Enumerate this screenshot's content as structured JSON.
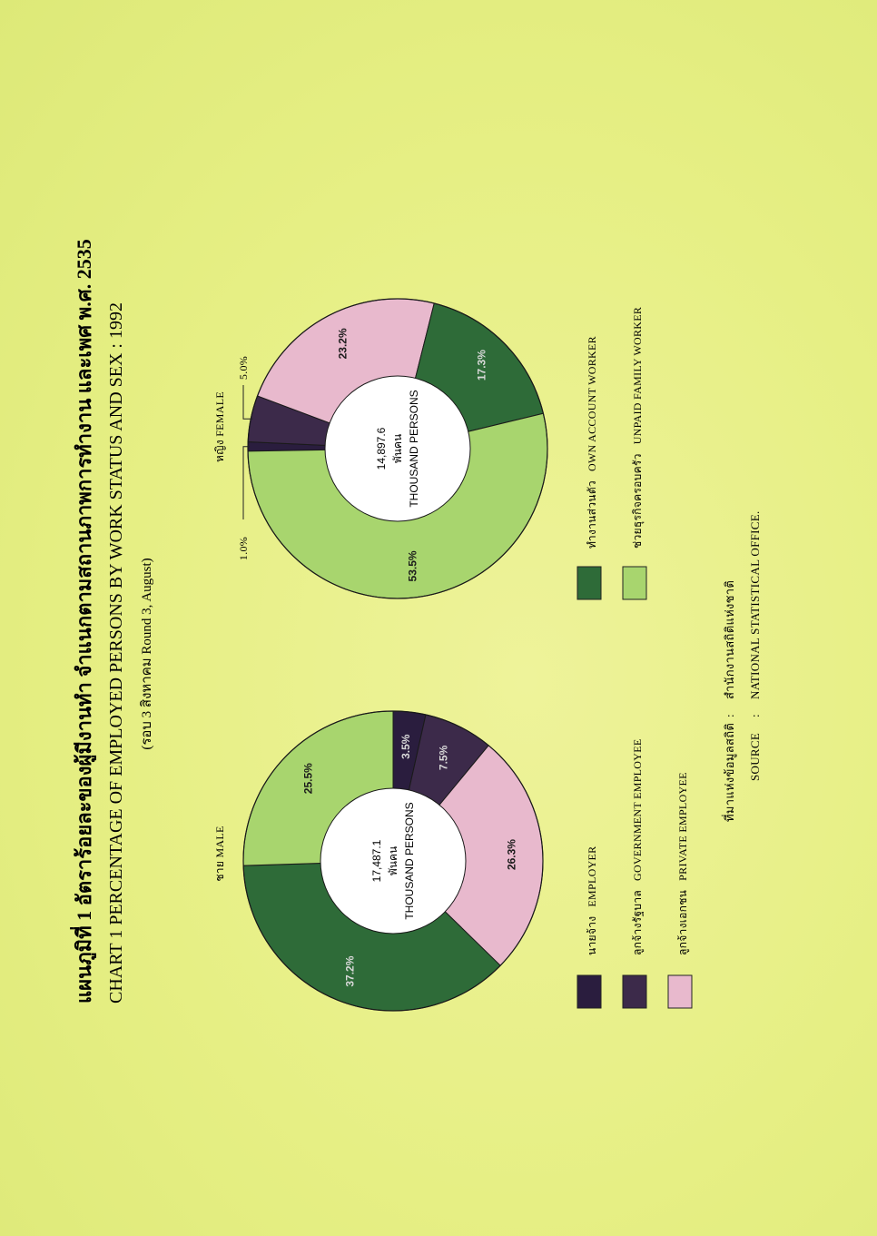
{
  "title_th": "แผนภูมิที่ 1 อัตราร้อยละของผู้มีงานทำ จำแนกตามสถานภาพการทำงาน และเพศ พ.ศ. 2535",
  "title_en": "CHART 1 PERCENTAGE OF EMPLOYED PERSONS BY WORK STATUS AND SEX : 1992",
  "subtitle": "(รอบ 3 สิงหาคม   Round 3, August)",
  "source_th_label": "ที่มาแห่งข้อมูลสถิติ",
  "source_th_value": "สำนักงานสถิติแห่งชาติ",
  "source_en_label": "SOURCE",
  "source_en_value": "NATIONAL STATISTICAL OFFICE.",
  "source_sep": ":",
  "colors": {
    "employer": "#2a1d3e",
    "government": "#3c2a4a",
    "private": "#e8b9cd",
    "own_account": "#2e6b38",
    "unpaid_family": "#a8d56e",
    "center": "#ffffff",
    "stroke": "#1a1a1a"
  },
  "legend": [
    {
      "key": "employer",
      "th": "นายจ้าง",
      "en": "EMPLOYER",
      "color": "#2a1d3e"
    },
    {
      "key": "government",
      "th": "ลูกจ้างรัฐบาล",
      "en": "GOVERNMENT EMPLOYEE",
      "color": "#3c2a4a"
    },
    {
      "key": "private",
      "th": "ลูกจ้างเอกชน",
      "en": "PRIVATE EMPLOYEE",
      "color": "#e8b9cd"
    },
    {
      "key": "own_account",
      "th": "ทำงานส่วนตัว",
      "en": "OWN ACCOUNT WORKER",
      "color": "#2e6b38"
    },
    {
      "key": "unpaid_family",
      "th": "ช่วยธุรกิจครอบครัว",
      "en": "UNPAID FAMILY WORKER",
      "color": "#a8d56e"
    }
  ],
  "chart_data": [
    {
      "type": "pie",
      "title": "ชาย  MALE",
      "center_value": "17,487.1",
      "center_unit_th": "พันคน",
      "center_unit_en": "THOUSAND PERSONS",
      "categories": [
        "EMPLOYER",
        "GOVERNMENT EMPLOYEE",
        "PRIVATE EMPLOYEE",
        "OWN ACCOUNT WORKER",
        "UNPAID FAMILY WORKER"
      ],
      "values": [
        3.5,
        7.5,
        26.3,
        37.2,
        25.5
      ],
      "labels": [
        "3.5%",
        "7.5%",
        "26.3%",
        "37.2%",
        "25.5%"
      ]
    },
    {
      "type": "pie",
      "title": "หญิง  FEMALE",
      "center_value": "14,897.6",
      "center_unit_th": "พันคน",
      "center_unit_en": "THOUSAND PERSONS",
      "categories": [
        "EMPLOYER",
        "GOVERNMENT EMPLOYEE",
        "PRIVATE EMPLOYEE",
        "OWN ACCOUNT WORKER",
        "UNPAID FAMILY WORKER"
      ],
      "values": [
        1.0,
        5.0,
        23.2,
        17.3,
        53.5
      ],
      "labels": [
        "1.0%",
        "5.0%",
        "23.2%",
        "17.3%",
        "53.5%"
      ]
    }
  ]
}
